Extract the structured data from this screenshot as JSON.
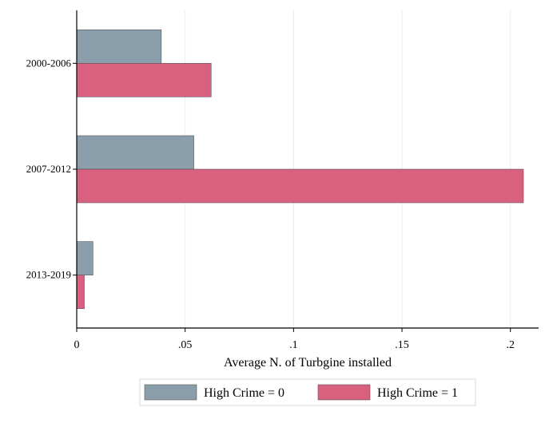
{
  "chart_data": {
    "type": "bar",
    "orientation": "horizontal",
    "categories": [
      "2000-2006",
      "2007-2012",
      "2013-2019"
    ],
    "series": [
      {
        "name": "High Crime = 0",
        "values": [
          0.039,
          0.054,
          0.0075
        ],
        "color": "#8A9EAC"
      },
      {
        "name": "High Crime = 1",
        "values": [
          0.062,
          0.206,
          0.0035
        ],
        "color": "#D9607E"
      }
    ],
    "xlabel": "Average N. of Turbgine installed",
    "ylabel": "",
    "xlim": [
      0,
      0.213
    ],
    "xticks": [
      0,
      0.05,
      0.1,
      0.15,
      0.2
    ],
    "xtick_labels": [
      "0",
      ".05",
      ".1",
      ".15",
      ".2"
    ],
    "grid": true,
    "legend_position": "bottom"
  }
}
